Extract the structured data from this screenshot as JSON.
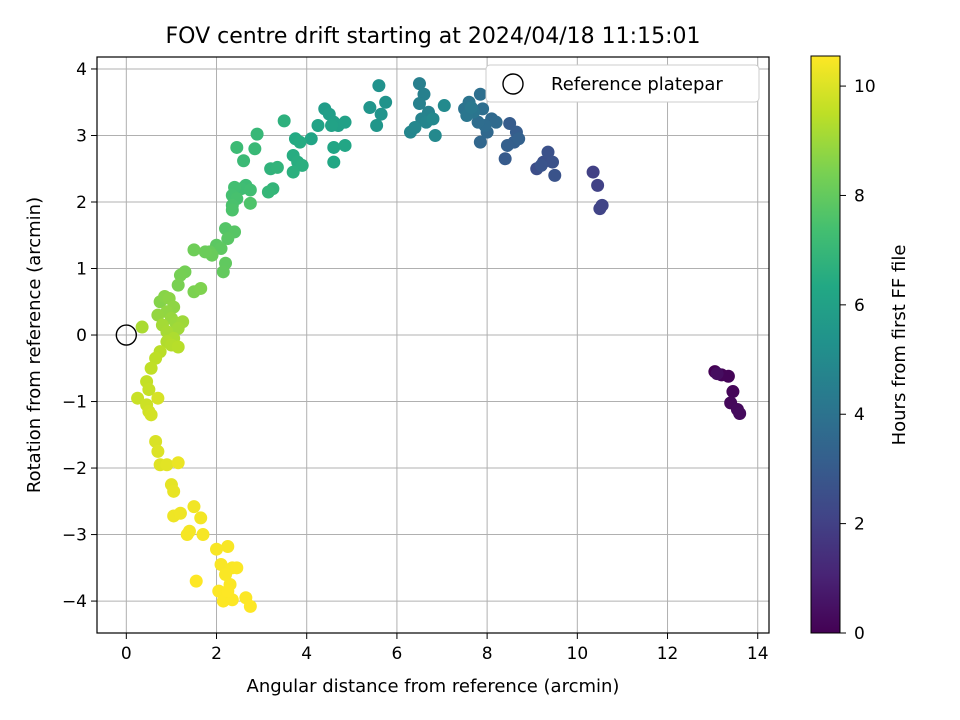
{
  "chart_data": {
    "type": "scatter",
    "title": "FOV centre drift starting at 2024/04/18 11:15:01",
    "xlabel": "Angular distance from reference (arcmin)",
    "ylabel": "Rotation from reference (arcmin)",
    "xlim": [
      -0.65,
      14.25
    ],
    "ylim": [
      -4.48,
      4.18
    ],
    "xticks": [
      0,
      2,
      4,
      6,
      8,
      10,
      12,
      14
    ],
    "yticks": [
      -4,
      -3,
      -2,
      -1,
      0,
      1,
      2,
      3,
      4
    ],
    "grid": true,
    "legend": {
      "placement": "top-right",
      "entries": [
        "Reference platepar"
      ]
    },
    "reference_point": {
      "x": 0,
      "y": 0,
      "label": "Reference platepar"
    },
    "colorbar": {
      "label": "Hours from first FF file",
      "range": [
        0,
        10.55
      ],
      "ticks": [
        0,
        2,
        4,
        6,
        8,
        10
      ],
      "colormap": "viridis"
    },
    "points": [
      [
        13.05,
        -0.55,
        0.0
      ],
      [
        13.2,
        -0.6,
        0.05
      ],
      [
        13.35,
        -0.62,
        0.1
      ],
      [
        13.45,
        -0.85,
        0.15
      ],
      [
        13.4,
        -1.02,
        0.2
      ],
      [
        13.55,
        -1.12,
        0.25
      ],
      [
        13.6,
        -1.18,
        0.3
      ],
      [
        13.1,
        -0.58,
        0.35
      ],
      [
        10.35,
        2.45,
        2.0
      ],
      [
        10.45,
        2.25,
        2.05
      ],
      [
        10.5,
        1.9,
        2.1
      ],
      [
        10.55,
        1.95,
        2.15
      ],
      [
        9.1,
        2.5,
        2.5
      ],
      [
        9.25,
        2.6,
        2.55
      ],
      [
        9.35,
        2.75,
        2.6
      ],
      [
        9.45,
        2.6,
        2.65
      ],
      [
        9.5,
        2.4,
        2.7
      ],
      [
        9.2,
        2.55,
        2.75
      ],
      [
        8.4,
        2.65,
        3.0
      ],
      [
        8.5,
        3.18,
        3.05
      ],
      [
        8.65,
        3.05,
        3.1
      ],
      [
        8.6,
        2.9,
        3.15
      ],
      [
        8.45,
        2.85,
        3.2
      ],
      [
        8.7,
        2.95,
        3.25
      ],
      [
        7.85,
        2.9,
        3.5
      ],
      [
        8.0,
        3.05,
        3.55
      ],
      [
        8.1,
        3.25,
        3.6
      ],
      [
        8.2,
        3.2,
        3.65
      ],
      [
        7.95,
        3.15,
        3.7
      ],
      [
        7.8,
        3.2,
        3.75
      ],
      [
        7.9,
        3.4,
        3.8
      ],
      [
        7.85,
        3.62,
        3.85
      ],
      [
        7.5,
        3.4,
        4.0
      ],
      [
        7.6,
        3.5,
        4.05
      ],
      [
        7.7,
        3.35,
        4.1
      ],
      [
        7.55,
        3.3,
        4.15
      ],
      [
        7.65,
        3.42,
        4.2
      ],
      [
        6.5,
        3.78,
        4.5
      ],
      [
        6.6,
        3.62,
        4.55
      ],
      [
        6.5,
        3.48,
        4.6
      ],
      [
        6.7,
        3.35,
        4.65
      ],
      [
        6.55,
        3.25,
        4.7
      ],
      [
        6.65,
        3.2,
        4.75
      ],
      [
        6.3,
        3.05,
        4.8
      ],
      [
        6.4,
        3.12,
        4.85
      ],
      [
        6.8,
        3.25,
        4.9
      ],
      [
        6.85,
        3.0,
        4.95
      ],
      [
        7.05,
        3.45,
        5.0
      ],
      [
        5.6,
        3.75,
        5.3
      ],
      [
        5.75,
        3.5,
        5.35
      ],
      [
        5.65,
        3.32,
        5.4
      ],
      [
        5.4,
        3.42,
        5.45
      ],
      [
        5.55,
        3.15,
        5.5
      ],
      [
        4.4,
        3.4,
        5.8
      ],
      [
        4.5,
        3.32,
        5.85
      ],
      [
        4.6,
        3.2,
        5.9
      ],
      [
        4.7,
        3.15,
        5.95
      ],
      [
        4.85,
        3.2,
        6.0
      ],
      [
        4.55,
        3.15,
        6.05
      ],
      [
        4.25,
        3.15,
        6.1
      ],
      [
        4.1,
        2.95,
        6.15
      ],
      [
        4.6,
        2.82,
        6.2
      ],
      [
        4.85,
        2.85,
        6.25
      ],
      [
        4.6,
        2.6,
        6.3
      ],
      [
        3.75,
        2.95,
        6.4
      ],
      [
        3.85,
        2.9,
        6.45
      ],
      [
        3.7,
        2.7,
        6.5
      ],
      [
        3.8,
        2.6,
        6.55
      ],
      [
        3.9,
        2.55,
        6.6
      ],
      [
        3.7,
        2.45,
        6.65
      ],
      [
        3.5,
        3.22,
        6.7
      ],
      [
        3.2,
        2.5,
        6.8
      ],
      [
        3.35,
        2.52,
        6.85
      ],
      [
        3.25,
        2.2,
        6.9
      ],
      [
        3.15,
        2.15,
        6.95
      ],
      [
        2.9,
        3.02,
        7.0
      ],
      [
        2.85,
        2.8,
        7.05
      ],
      [
        2.6,
        2.62,
        7.1
      ],
      [
        2.45,
        2.82,
        7.15
      ],
      [
        2.65,
        2.25,
        7.2
      ],
      [
        2.55,
        2.2,
        7.25
      ],
      [
        2.75,
        2.18,
        7.3
      ],
      [
        2.4,
        2.22,
        7.35
      ],
      [
        2.35,
        2.1,
        7.4
      ],
      [
        2.45,
        2.05,
        7.45
      ],
      [
        2.35,
        1.95,
        7.5
      ],
      [
        2.35,
        1.88,
        7.55
      ],
      [
        2.75,
        1.98,
        7.6
      ],
      [
        2.2,
        1.6,
        7.7
      ],
      [
        2.4,
        1.55,
        7.75
      ],
      [
        2.25,
        1.45,
        7.8
      ],
      [
        2.0,
        1.35,
        7.85
      ],
      [
        2.1,
        1.3,
        7.9
      ],
      [
        2.2,
        1.08,
        7.95
      ],
      [
        2.15,
        0.95,
        8.0
      ],
      [
        1.85,
        1.25,
        8.05
      ],
      [
        1.9,
        1.2,
        8.1
      ],
      [
        1.75,
        1.25,
        8.15
      ],
      [
        1.5,
        1.28,
        8.2
      ],
      [
        1.3,
        0.95,
        8.3
      ],
      [
        1.2,
        0.9,
        8.35
      ],
      [
        1.15,
        0.75,
        8.4
      ],
      [
        1.5,
        0.65,
        8.45
      ],
      [
        1.65,
        0.7,
        8.5
      ],
      [
        0.75,
        0.5,
        8.6
      ],
      [
        0.85,
        0.58,
        8.65
      ],
      [
        0.95,
        0.55,
        8.7
      ],
      [
        1.05,
        0.42,
        8.75
      ],
      [
        0.9,
        0.35,
        8.8
      ],
      [
        0.7,
        0.3,
        8.85
      ],
      [
        1.0,
        0.25,
        8.9
      ],
      [
        1.1,
        0.18,
        8.95
      ],
      [
        1.25,
        0.2,
        9.0
      ],
      [
        1.15,
        0.1,
        9.05
      ],
      [
        0.8,
        0.15,
        9.1
      ],
      [
        0.9,
        0.05,
        9.15
      ],
      [
        0.35,
        0.12,
        9.2
      ],
      [
        1.05,
        -0.05,
        9.25
      ],
      [
        0.9,
        -0.1,
        9.3
      ],
      [
        1.0,
        -0.15,
        9.35
      ],
      [
        1.15,
        -0.18,
        9.4
      ],
      [
        0.75,
        -0.25,
        9.45
      ],
      [
        0.65,
        -0.35,
        9.5
      ],
      [
        0.55,
        -0.5,
        9.55
      ],
      [
        0.45,
        -0.7,
        9.6
      ],
      [
        0.5,
        -0.82,
        9.65
      ],
      [
        0.25,
        -0.95,
        9.7
      ],
      [
        0.45,
        -1.05,
        9.75
      ],
      [
        0.5,
        -1.15,
        9.8
      ],
      [
        0.55,
        -1.2,
        9.85
      ],
      [
        0.7,
        -0.95,
        9.9
      ],
      [
        0.65,
        -1.6,
        9.95
      ],
      [
        0.7,
        -1.75,
        10.0
      ],
      [
        0.75,
        -1.95,
        10.05
      ],
      [
        0.9,
        -1.95,
        10.1
      ],
      [
        1.0,
        -2.25,
        10.15
      ],
      [
        1.05,
        -2.35,
        10.2
      ],
      [
        1.15,
        -1.92,
        10.25
      ],
      [
        1.05,
        -2.72,
        10.3
      ],
      [
        1.2,
        -2.68,
        10.32
      ],
      [
        1.5,
        -2.58,
        10.35
      ],
      [
        1.65,
        -2.75,
        10.38
      ],
      [
        1.4,
        -2.95,
        10.4
      ],
      [
        1.35,
        -3.0,
        10.42
      ],
      [
        1.7,
        -3.0,
        10.44
      ],
      [
        2.0,
        -3.22,
        10.46
      ],
      [
        2.25,
        -3.18,
        10.47
      ],
      [
        2.1,
        -3.45,
        10.48
      ],
      [
        2.35,
        -3.5,
        10.49
      ],
      [
        2.2,
        -3.6,
        10.5
      ],
      [
        2.45,
        -3.5,
        10.51
      ],
      [
        2.3,
        -3.75,
        10.52
      ],
      [
        2.05,
        -3.85,
        10.53
      ],
      [
        2.15,
        -4.0,
        10.53
      ],
      [
        2.35,
        -3.98,
        10.54
      ],
      [
        2.65,
        -3.95,
        10.54
      ],
      [
        2.75,
        -4.08,
        10.55
      ],
      [
        1.55,
        -3.7,
        10.55
      ],
      [
        2.25,
        -3.85,
        10.55
      ]
    ]
  }
}
